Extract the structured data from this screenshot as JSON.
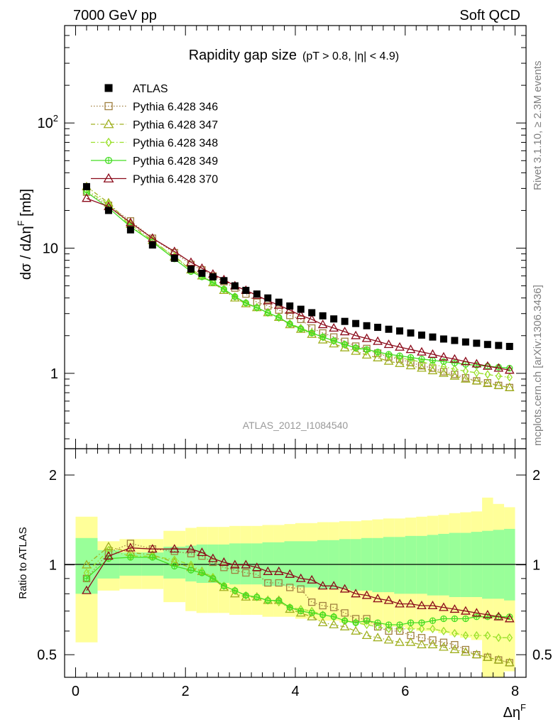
{
  "header": {
    "left": "7000 GeV pp",
    "right": "Soft QCD"
  },
  "side_labels": {
    "rivet": "Rivet 3.1.10, ≥ 2.3M events",
    "mcplots": "mcplots.cern.ch [arXiv:1306.3436]"
  },
  "analysis_id": "ATLAS_2012_I1084540",
  "chart_data": [
    {
      "type": "scatter",
      "title": "Rapidity gap size",
      "subtitle": "(pT > 0.8, |η| < 4.9)",
      "ylabel": "dσ / dΔηF [mb]",
      "xlabel": "ΔηF",
      "x_scale": "linear",
      "y_scale": "log",
      "xlim": [
        -0.2,
        8.2
      ],
      "ylim": [
        0.25,
        600
      ],
      "y_major_ticks": [
        1,
        10,
        100
      ],
      "y_tick_labels": [
        "1",
        "10",
        "10^2"
      ],
      "x_ticks": [
        0,
        2,
        4,
        6,
        8
      ],
      "x": [
        0.2,
        0.6,
        1.0,
        1.4,
        1.8,
        2.1,
        2.3,
        2.5,
        2.7,
        2.9,
        3.1,
        3.3,
        3.5,
        3.7,
        3.9,
        4.1,
        4.3,
        4.5,
        4.7,
        4.9,
        5.1,
        5.3,
        5.5,
        5.7,
        5.9,
        6.1,
        6.3,
        6.5,
        6.7,
        6.9,
        7.1,
        7.3,
        7.5,
        7.7,
        7.9
      ],
      "legend_position": "top-left",
      "series": [
        {
          "name": "ATLAS",
          "marker": "filled-square",
          "color": "#000000",
          "line": "none",
          "values": [
            31,
            20,
            14,
            10.6,
            8.3,
            6.8,
            6.3,
            5.9,
            5.5,
            5.0,
            4.6,
            4.3,
            4.0,
            3.7,
            3.45,
            3.25,
            3.05,
            2.88,
            2.72,
            2.6,
            2.5,
            2.4,
            2.33,
            2.25,
            2.18,
            2.1,
            2.02,
            1.95,
            1.88,
            1.83,
            1.78,
            1.74,
            1.7,
            1.67,
            1.64
          ]
        },
        {
          "name": "Pythia 6.428 346",
          "marker": "open-square",
          "color": "#a08040",
          "line": "dotted",
          "values": [
            28,
            22,
            16.5,
            12,
            9.2,
            7.4,
            6.7,
            6.0,
            5.4,
            4.8,
            4.3,
            3.7,
            3.45,
            3.2,
            2.9,
            2.7,
            2.3,
            2.1,
            1.95,
            1.8,
            1.65,
            1.58,
            1.45,
            1.35,
            1.3,
            1.22,
            1.15,
            1.1,
            1.03,
            0.98,
            0.92,
            0.87,
            0.84,
            0.8,
            0.77
          ]
        },
        {
          "name": "Pythia 6.428 347",
          "marker": "open-triangle",
          "color": "#a0b020",
          "line": "dashdot",
          "values": [
            31,
            23,
            15.5,
            11.5,
            8.5,
            6.7,
            6.0,
            5.3,
            4.6,
            4.0,
            3.6,
            3.35,
            3.05,
            2.8,
            2.45,
            2.25,
            2.05,
            1.85,
            1.72,
            1.6,
            1.5,
            1.4,
            1.33,
            1.25,
            1.2,
            1.15,
            1.1,
            1.05,
            1.0,
            0.95,
            0.9,
            0.87,
            0.83,
            0.8,
            0.77
          ]
        },
        {
          "name": "Pythia 6.428 348",
          "marker": "open-diamond",
          "color": "#9ae02a",
          "line": "dashdot",
          "values": [
            29,
            22.5,
            15,
            11.3,
            8.6,
            6.8,
            6.0,
            5.35,
            4.7,
            4.1,
            3.65,
            3.35,
            3.05,
            2.78,
            2.5,
            2.3,
            2.12,
            1.95,
            1.82,
            1.7,
            1.6,
            1.52,
            1.45,
            1.38,
            1.33,
            1.28,
            1.23,
            1.18,
            1.13,
            1.08,
            1.04,
            1.01,
            0.98,
            0.95,
            0.93
          ]
        },
        {
          "name": "Pythia 6.428 349",
          "marker": "open-circle-cross",
          "color": "#44dd22",
          "line": "solid",
          "values": [
            28,
            21,
            14.8,
            11.2,
            8.2,
            6.5,
            5.9,
            5.3,
            4.7,
            4.1,
            3.65,
            3.35,
            3.05,
            2.8,
            2.48,
            2.27,
            2.1,
            1.95,
            1.82,
            1.7,
            1.6,
            1.55,
            1.48,
            1.42,
            1.38,
            1.34,
            1.3,
            1.27,
            1.24,
            1.21,
            1.18,
            1.16,
            1.14,
            1.12,
            1.1
          ]
        },
        {
          "name": "Pythia 6.428 370",
          "marker": "open-triangle",
          "color": "#8b0a1a",
          "line": "solid",
          "values": [
            25,
            21.5,
            16,
            12,
            9.4,
            7.7,
            6.9,
            6.2,
            5.6,
            5.0,
            4.6,
            4.2,
            3.8,
            3.5,
            3.2,
            2.9,
            2.7,
            2.45,
            2.3,
            2.15,
            2.0,
            1.9,
            1.8,
            1.7,
            1.62,
            1.55,
            1.48,
            1.42,
            1.35,
            1.3,
            1.24,
            1.19,
            1.14,
            1.1,
            1.06
          ]
        }
      ]
    },
    {
      "type": "scatter",
      "title": "",
      "ylabel": "Ratio to ATLAS",
      "xlabel": "ΔηF",
      "x_scale": "linear",
      "y_scale": "log",
      "xlim": [
        -0.2,
        8.2
      ],
      "ylim": [
        0.42,
        2.45
      ],
      "y_ticks": [
        0.5,
        1,
        2
      ],
      "y_tick_labels": [
        "0.5",
        "1",
        "2"
      ],
      "reference_line": 1,
      "band_inner_color": "#99ff99",
      "band_outer_color": "#ffff99",
      "band_edges": [
        0,
        0.4,
        0.8,
        1.2,
        1.6,
        2.0,
        2.2,
        2.4,
        2.6,
        2.8,
        3.0,
        3.2,
        3.4,
        3.6,
        3.8,
        4.0,
        4.2,
        4.4,
        4.6,
        4.8,
        5.0,
        5.2,
        5.4,
        5.6,
        5.8,
        6.0,
        6.2,
        6.4,
        6.6,
        6.8,
        7.0,
        7.2,
        7.4,
        7.6,
        7.8,
        8.0
      ],
      "band_inner": [
        [
          0.8,
          1.23
        ],
        [
          0.9,
          1.12
        ],
        [
          0.92,
          1.1
        ],
        [
          0.92,
          1.1
        ],
        [
          0.9,
          1.15
        ],
        [
          0.88,
          1.16
        ],
        [
          0.87,
          1.17
        ],
        [
          0.87,
          1.17
        ],
        [
          0.87,
          1.17
        ],
        [
          0.86,
          1.18
        ],
        [
          0.86,
          1.18
        ],
        [
          0.86,
          1.18
        ],
        [
          0.85,
          1.19
        ],
        [
          0.85,
          1.19
        ],
        [
          0.85,
          1.2
        ],
        [
          0.84,
          1.2
        ],
        [
          0.84,
          1.2
        ],
        [
          0.83,
          1.21
        ],
        [
          0.83,
          1.21
        ],
        [
          0.83,
          1.22
        ],
        [
          0.82,
          1.22
        ],
        [
          0.82,
          1.23
        ],
        [
          0.81,
          1.23
        ],
        [
          0.81,
          1.24
        ],
        [
          0.8,
          1.24
        ],
        [
          0.8,
          1.25
        ],
        [
          0.8,
          1.25
        ],
        [
          0.79,
          1.26
        ],
        [
          0.79,
          1.27
        ],
        [
          0.78,
          1.28
        ],
        [
          0.78,
          1.28
        ],
        [
          0.78,
          1.29
        ],
        [
          0.77,
          1.3
        ],
        [
          0.77,
          1.31
        ],
        [
          0.76,
          1.32
        ]
      ],
      "band_outer": [
        [
          0.55,
          1.45
        ],
        [
          0.82,
          1.2
        ],
        [
          0.83,
          1.22
        ],
        [
          0.83,
          1.22
        ],
        [
          0.75,
          1.3
        ],
        [
          0.7,
          1.33
        ],
        [
          0.69,
          1.34
        ],
        [
          0.69,
          1.34
        ],
        [
          0.69,
          1.34
        ],
        [
          0.68,
          1.35
        ],
        [
          0.68,
          1.35
        ],
        [
          0.68,
          1.35
        ],
        [
          0.67,
          1.36
        ],
        [
          0.67,
          1.36
        ],
        [
          0.67,
          1.37
        ],
        [
          0.66,
          1.38
        ],
        [
          0.66,
          1.38
        ],
        [
          0.65,
          1.39
        ],
        [
          0.65,
          1.39
        ],
        [
          0.64,
          1.4
        ],
        [
          0.64,
          1.4
        ],
        [
          0.63,
          1.41
        ],
        [
          0.63,
          1.42
        ],
        [
          0.62,
          1.43
        ],
        [
          0.62,
          1.43
        ],
        [
          0.61,
          1.44
        ],
        [
          0.6,
          1.45
        ],
        [
          0.6,
          1.46
        ],
        [
          0.59,
          1.47
        ],
        [
          0.58,
          1.49
        ],
        [
          0.57,
          1.5
        ],
        [
          0.56,
          1.51
        ],
        [
          0.4,
          1.68
        ],
        [
          0.42,
          1.6
        ],
        [
          0.44,
          1.56
        ]
      ],
      "x": [
        0.2,
        0.6,
        1.0,
        1.4,
        1.8,
        2.1,
        2.3,
        2.5,
        2.7,
        2.9,
        3.1,
        3.3,
        3.5,
        3.7,
        3.9,
        4.1,
        4.3,
        4.5,
        4.7,
        4.9,
        5.1,
        5.3,
        5.5,
        5.7,
        5.9,
        6.1,
        6.3,
        6.5,
        6.7,
        6.9,
        7.1,
        7.3,
        7.5,
        7.7,
        7.9
      ],
      "series": [
        {
          "name": "Pythia 6.428 346",
          "marker": "open-square",
          "color": "#a08040",
          "line": "dotted",
          "values": [
            0.9,
            1.1,
            1.18,
            1.13,
            1.11,
            1.09,
            1.07,
            1.02,
            0.98,
            0.96,
            0.94,
            0.93,
            0.87,
            0.87,
            0.84,
            0.83,
            0.75,
            0.73,
            0.72,
            0.69,
            0.66,
            0.66,
            0.62,
            0.6,
            0.6,
            0.58,
            0.57,
            0.56,
            0.55,
            0.54,
            0.52,
            0.5,
            0.49,
            0.48,
            0.47
          ]
        },
        {
          "name": "Pythia 6.428 347",
          "marker": "open-triangle",
          "color": "#a0b020",
          "line": "dashdot",
          "values": [
            1.0,
            1.15,
            1.1,
            1.08,
            1.02,
            0.98,
            0.95,
            0.9,
            0.84,
            0.8,
            0.78,
            0.78,
            0.76,
            0.76,
            0.71,
            0.69,
            0.67,
            0.64,
            0.63,
            0.62,
            0.6,
            0.58,
            0.57,
            0.56,
            0.55,
            0.55,
            0.54,
            0.54,
            0.53,
            0.52,
            0.51,
            0.5,
            0.49,
            0.48,
            0.47
          ]
        },
        {
          "name": "Pythia 6.428 348",
          "marker": "open-diamond",
          "color": "#9ae02a",
          "line": "dashdot",
          "values": [
            0.94,
            1.12,
            1.07,
            1.07,
            1.04,
            1.0,
            0.95,
            0.91,
            0.85,
            0.82,
            0.79,
            0.78,
            0.76,
            0.75,
            0.72,
            0.71,
            0.7,
            0.68,
            0.67,
            0.65,
            0.64,
            0.63,
            0.62,
            0.61,
            0.61,
            0.61,
            0.61,
            0.61,
            0.6,
            0.59,
            0.58,
            0.58,
            0.58,
            0.57,
            0.57
          ]
        },
        {
          "name": "Pythia 6.428 349",
          "marker": "open-circle-cross",
          "color": "#44dd22",
          "line": "solid",
          "values": [
            0.9,
            1.05,
            1.06,
            1.06,
            0.99,
            0.96,
            0.94,
            0.9,
            0.85,
            0.82,
            0.79,
            0.78,
            0.76,
            0.76,
            0.72,
            0.7,
            0.69,
            0.68,
            0.67,
            0.65,
            0.64,
            0.65,
            0.64,
            0.63,
            0.63,
            0.64,
            0.64,
            0.65,
            0.66,
            0.66,
            0.66,
            0.67,
            0.67,
            0.67,
            0.67
          ]
        },
        {
          "name": "Pythia 6.428 370",
          "marker": "open-triangle",
          "color": "#8b0a1a",
          "line": "solid",
          "values": [
            0.82,
            1.07,
            1.14,
            1.13,
            1.13,
            1.13,
            1.1,
            1.05,
            1.02,
            1.0,
            1.0,
            0.98,
            0.95,
            0.95,
            0.93,
            0.9,
            0.89,
            0.85,
            0.85,
            0.83,
            0.8,
            0.79,
            0.77,
            0.76,
            0.74,
            0.74,
            0.73,
            0.73,
            0.72,
            0.71,
            0.7,
            0.69,
            0.68,
            0.67,
            0.66
          ]
        }
      ]
    }
  ]
}
